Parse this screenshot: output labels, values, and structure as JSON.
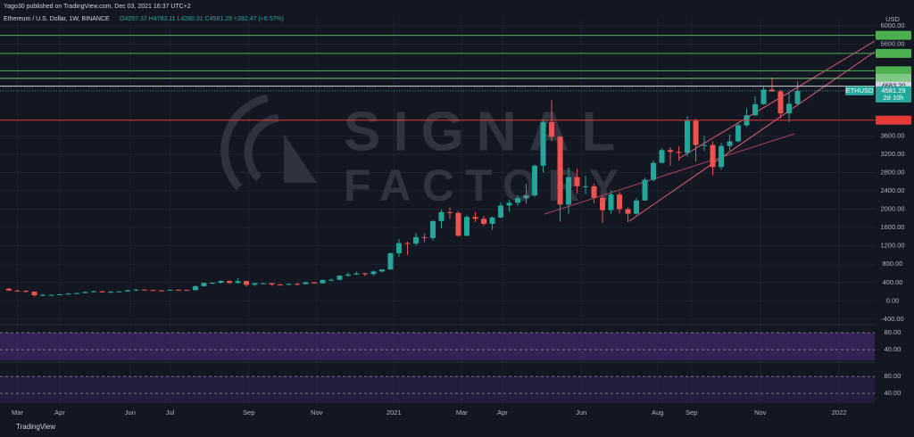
{
  "header": {
    "published": "Yago30 published on TradingView.com, Dec 03, 2021 16:37 UTC+2",
    "symbol_line": "Ethereum / U.S. Dollar, 1W, BINANCE",
    "ohlc_line": "O4297.37 H4783.11 L4280.31 C4581.29 +282.47 (+6.57%)"
  },
  "watermark": {
    "line1": "SIGNAL",
    "line2": "FACTORY"
  },
  "footer": "TradingView",
  "chart_data": {
    "type": "candlestick",
    "currency": "USD",
    "up_color": "#26a69a",
    "down_color": "#ef5350",
    "grid": true,
    "xlim": [
      -1.05,
      102.1
    ],
    "xticks": [
      {
        "value": 1,
        "label": "Mar"
      },
      {
        "value": 6,
        "label": "Apr"
      },
      {
        "value": 14.3,
        "label": "Jun"
      },
      {
        "value": 19,
        "label": "Jul"
      },
      {
        "value": 28.3,
        "label": "Sep"
      },
      {
        "value": 36.3,
        "label": "Nov"
      },
      {
        "value": 45.4,
        "label": "2021"
      },
      {
        "value": 53.4,
        "label": "Mar"
      },
      {
        "value": 58.2,
        "label": "Apr"
      },
      {
        "value": 67.5,
        "label": "Jun"
      },
      {
        "value": 76.5,
        "label": "Aug"
      },
      {
        "value": 80.5,
        "label": "Sep"
      },
      {
        "value": 88.6,
        "label": "Nov"
      },
      {
        "value": 97.9,
        "label": "2022"
      }
    ],
    "ylim": [
      -480,
      6175
    ],
    "yticks": [
      {
        "value": 6000,
        "label": "6000.00"
      },
      {
        "value": 5600,
        "label": "5600.00"
      },
      {
        "value": 3600,
        "label": "3600.00"
      },
      {
        "value": 3200,
        "label": "3200.00"
      },
      {
        "value": 2800,
        "label": "2800.00"
      },
      {
        "value": 2400,
        "label": "2400.00"
      },
      {
        "value": 2000,
        "label": "2000.00"
      },
      {
        "value": 1600,
        "label": "1600.00"
      },
      {
        "value": 1200,
        "label": "1200.00"
      },
      {
        "value": 800,
        "label": "800.00"
      },
      {
        "value": 400,
        "label": "400.00"
      },
      {
        "value": 0,
        "label": "0.00"
      },
      {
        "value": -400,
        "label": "-400.00"
      }
    ],
    "open": [
      265,
      225,
      218,
      200,
      123,
      131,
      131,
      143,
      158,
      170,
      194,
      210,
      187,
      199,
      206,
      230,
      245,
      235,
      228,
      225,
      242,
      240,
      232,
      320,
      390,
      395,
      435,
      390,
      430,
      350,
      385,
      385,
      355,
      350,
      370,
      365,
      405,
      382,
      455,
      460,
      550,
      575,
      600,
      585,
      640,
      685,
      1040,
      1260,
      1250,
      1390,
      1370,
      1740,
      1935,
      1920,
      1420,
      1830,
      1790,
      1680,
      1820,
      2080,
      2140,
      2240,
      2300,
      2950,
      3900,
      3580,
      2100,
      2700,
      2500,
      2500,
      2250,
      1980,
      2320,
      2000,
      1900,
      2190,
      2640,
      3010,
      3290,
      3250,
      3230,
      3930,
      3400,
      3400,
      2920,
      3380,
      3480,
      3830,
      4050,
      4290,
      4610,
      4570,
      4090,
      4297.37
    ],
    "high": [
      285,
      245,
      235,
      205,
      150,
      145,
      155,
      175,
      185,
      200,
      225,
      215,
      215,
      215,
      245,
      255,
      250,
      245,
      235,
      250,
      250,
      245,
      335,
      400,
      410,
      445,
      440,
      490,
      440,
      395,
      395,
      390,
      380,
      380,
      395,
      420,
      415,
      470,
      485,
      555,
      620,
      635,
      615,
      665,
      690,
      1050,
      1350,
      1290,
      1475,
      1470,
      1760,
      1990,
      2040,
      1960,
      1870,
      1940,
      1850,
      1840,
      2150,
      2200,
      2300,
      2550,
      2970,
      3950,
      4380,
      3600,
      2910,
      2890,
      2730,
      2560,
      2300,
      2410,
      2380,
      2040,
      2240,
      2690,
      3070,
      3330,
      3350,
      3370,
      4030,
      3970,
      3600,
      3480,
      3450,
      3630,
      3900,
      4200,
      4460,
      4670,
      4870,
      4600,
      4550,
      4783.11
    ],
    "low": [
      215,
      200,
      180,
      90,
      105,
      125,
      130,
      140,
      150,
      165,
      180,
      180,
      180,
      190,
      200,
      220,
      225,
      220,
      220,
      220,
      225,
      230,
      230,
      310,
      365,
      375,
      370,
      380,
      310,
      330,
      360,
      330,
      335,
      340,
      335,
      365,
      370,
      380,
      430,
      450,
      525,
      565,
      540,
      550,
      625,
      680,
      960,
      1000,
      1200,
      1280,
      1320,
      1580,
      1790,
      1400,
      1410,
      1720,
      1640,
      1550,
      1800,
      1950,
      2070,
      2120,
      2270,
      2800,
      3480,
      1730,
      1900,
      2330,
      2330,
      2130,
      1700,
      1900,
      1910,
      1720,
      1870,
      2180,
      2600,
      3000,
      2950,
      3060,
      3150,
      3040,
      3270,
      2740,
      2860,
      3280,
      3460,
      3790,
      4030,
      4280,
      4560,
      3980,
      3900,
      4280.31
    ],
    "close": [
      225,
      218,
      200,
      123,
      131,
      131,
      143,
      158,
      170,
      194,
      210,
      187,
      199,
      206,
      230,
      245,
      235,
      228,
      225,
      242,
      240,
      232,
      320,
      390,
      395,
      435,
      390,
      430,
      350,
      385,
      385,
      355,
      350,
      370,
      365,
      405,
      382,
      455,
      460,
      550,
      575,
      600,
      585,
      640,
      685,
      1040,
      1260,
      1250,
      1390,
      1370,
      1740,
      1935,
      1920,
      1420,
      1830,
      1790,
      1680,
      1820,
      2080,
      2140,
      2240,
      2300,
      2950,
      3900,
      3580,
      2100,
      2700,
      2500,
      2500,
      2250,
      1980,
      2320,
      2000,
      1900,
      2190,
      2640,
      3010,
      3290,
      3250,
      3230,
      3930,
      3400,
      3400,
      2920,
      3380,
      3480,
      3830,
      4050,
      4290,
      4610,
      4570,
      4090,
      4300,
      4581.29
    ],
    "price_lines": [
      {
        "value": 5794.32,
        "color": "#4caf50"
      },
      {
        "value": 5398.51,
        "color": "#4caf50"
      },
      {
        "value": 5020.61,
        "color": "#4caf50"
      },
      {
        "value": 4855.36,
        "color": "#81c784"
      },
      {
        "value": 4683.2,
        "label": "4683.20",
        "color": "#d1d4dc"
      },
      {
        "value": 3941.06,
        "color": "#e53935"
      }
    ],
    "last_price": {
      "symbol": "ETHUSD",
      "countdown": "2d 10h"
    },
    "panes": [
      {
        "ylim": [
          15,
          95
        ],
        "yticks": [
          {
            "value": 80,
            "label": "80.00"
          },
          {
            "value": 40,
            "label": "40.00"
          }
        ],
        "color": "#4a2a7a"
      },
      {
        "ylim": [
          17,
          110
        ],
        "yticks": [
          {
            "value": 80,
            "label": "80.00"
          },
          {
            "value": 40,
            "label": "40.00"
          }
        ],
        "color": "#2e2250"
      }
    ]
  }
}
